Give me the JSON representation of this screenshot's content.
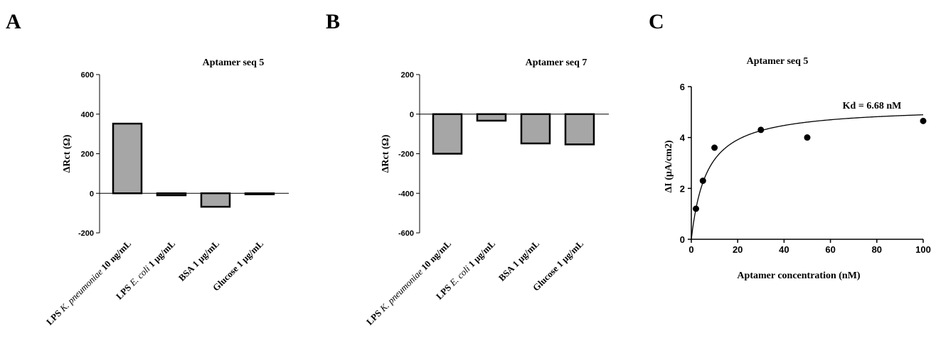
{
  "panels": [
    "A",
    "B",
    "C"
  ],
  "chart_data": [
    {
      "type": "bar",
      "title": "Aptamer seq 5",
      "ylabel": "ΔRct (Ω)",
      "xlabel": "",
      "categories": [
        [
          "LPS ",
          "K. pneumoniae",
          " 10 ng/mL"
        ],
        [
          "LPS ",
          "E. coli",
          " 1 µg/mL"
        ],
        [
          "BSA 1 µg/mL"
        ],
        [
          "Glucose 1 µg/mL"
        ]
      ],
      "values": [
        352,
        -10,
        -68,
        -5
      ],
      "ylim": [
        -200,
        600
      ],
      "yticks": [
        600,
        400,
        200,
        0,
        -200
      ],
      "bar_color": "#a6a6a6"
    },
    {
      "type": "bar",
      "title": "Aptamer seq 7",
      "ylabel": "ΔRct (Ω)",
      "xlabel": "",
      "categories": [
        [
          "LPS ",
          "K. pneumoniae",
          " 10 ng/mL"
        ],
        [
          "LPS ",
          "E. coli",
          " 1 µg/mL"
        ],
        [
          "BSA 1 µg/mL"
        ],
        [
          "Glucose 1 µg/mL"
        ]
      ],
      "values": [
        -200,
        -33,
        -148,
        -153
      ],
      "ylim": [
        -600,
        200
      ],
      "yticks": [
        200,
        0,
        -200,
        -400,
        -600
      ],
      "bar_color": "#a6a6a6"
    },
    {
      "type": "scatter",
      "title": "Aptamer seq 5",
      "ylabel": "ΔI (µA/cm2)",
      "xlabel": "Aptamer concentration (nM)",
      "points": [
        {
          "x": 2,
          "y": 1.2
        },
        {
          "x": 5,
          "y": 2.3
        },
        {
          "x": 10,
          "y": 3.6
        },
        {
          "x": 30,
          "y": 4.3
        },
        {
          "x": 50,
          "y": 4.0
        },
        {
          "x": 100,
          "y": 4.65
        }
      ],
      "fit": {
        "model": "one-site binding",
        "kd": 6.68,
        "bmax": 5.22
      },
      "annotation": "Kd = 6.68 nM",
      "xlim": [
        0,
        100
      ],
      "ylim": [
        0,
        6
      ],
      "xticks": [
        0,
        20,
        40,
        60,
        80,
        100
      ],
      "yticks": [
        0,
        2,
        4,
        6
      ]
    }
  ]
}
